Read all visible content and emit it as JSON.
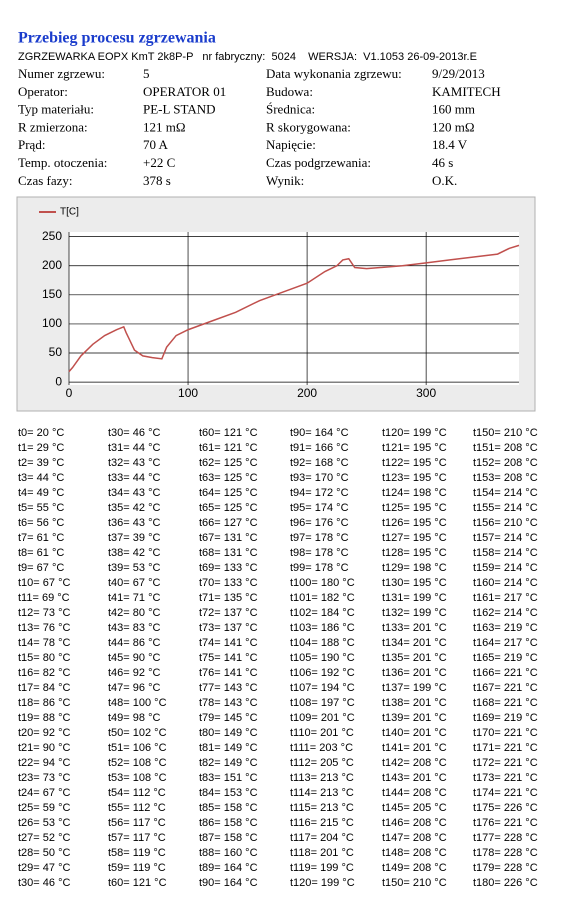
{
  "header": {
    "title": "Przebieg procesu zgrzewania",
    "subtitle": "ZGRZEWARKA EOPX KmT 2k8P-P   nr fabryczny:  5024    WERSJA:  V1.1053 26-09-2013r.E"
  },
  "info": {
    "left": [
      {
        "label": "Numer zgrzewu:",
        "value": "5"
      },
      {
        "label": "Operator:",
        "value": "OPERATOR 01"
      },
      {
        "label": "Typ materiału:",
        "value": "PE-L STAND"
      },
      {
        "label": "R zmierzona:",
        "value": "121 mΩ"
      },
      {
        "label": "Prąd:",
        "value": "70 A"
      },
      {
        "label": "Temp. otoczenia:",
        "value": "+22 C"
      },
      {
        "label": "Czas fazy:",
        "value": "378 s"
      }
    ],
    "right": [
      {
        "label": "Data wykonania zgrzewu:",
        "value": "9/29/2013"
      },
      {
        "label": "Budowa:",
        "value": "KAMITECH"
      },
      {
        "label": "Średnica:",
        "value": "160 mm"
      },
      {
        "label": "R skorygowana:",
        "value": "120 mΩ"
      },
      {
        "label": "Napięcie:",
        "value": "18.4 V"
      },
      {
        "label": "Czas podgrzewania:",
        "value": "46 s"
      },
      {
        "label": "Wynik:",
        "value": "O.K."
      }
    ]
  },
  "chart_data": {
    "type": "line",
    "x": [
      0,
      3,
      10,
      20,
      30,
      40,
      46,
      48,
      55,
      62,
      70,
      78,
      82,
      90,
      100,
      120,
      140,
      160,
      180,
      200,
      215,
      225,
      230,
      235,
      240,
      250,
      280,
      300,
      320,
      340,
      360,
      370,
      378
    ],
    "series": [
      {
        "name": "T[C]",
        "color": "#c0504d",
        "values": [
          18,
          25,
          45,
          65,
          80,
          90,
          95,
          85,
          55,
          45,
          42,
          40,
          60,
          80,
          90,
          105,
          120,
          140,
          155,
          170,
          190,
          200,
          210,
          212,
          197,
          195,
          200,
          205,
          210,
          215,
          220,
          230,
          235
        ]
      }
    ],
    "xlim": [
      0,
      378
    ],
    "ylim": [
      -5,
      258
    ],
    "xticks": [
      0,
      100,
      200,
      300
    ],
    "yticks": [
      0,
      50,
      100,
      150,
      200,
      250
    ],
    "grid": true
  },
  "table": {
    "columns": [
      [
        "t0= 20 °C",
        "t1= 29 °C",
        "t2= 39 °C",
        "t3= 44 °C",
        "t4= 49 °C",
        "t5= 55 °C",
        "t6= 56 °C",
        "t7= 61 °C",
        "t8= 61 °C",
        "t9= 67 °C",
        "t10= 67 °C",
        "t11= 69 °C",
        "t12= 73 °C",
        "t13= 76 °C",
        "t14= 78 °C",
        "t15= 80 °C",
        "t16= 82 °C",
        "t17= 84 °C",
        "t18= 86 °C",
        "t19= 88 °C",
        "t20= 92 °C",
        "t21= 90 °C",
        "t22= 94 °C",
        "t23= 73 °C",
        "t24= 67 °C",
        "t25= 59 °C",
        "t26= 53 °C",
        "t27= 52 °C",
        "t28= 50 °C",
        "t29= 47 °C",
        "t30= 46 °C"
      ],
      [
        "t30= 46 °C",
        "t31= 44 °C",
        "t32= 43 °C",
        "t33= 44 °C",
        "t34= 43 °C",
        "t35= 42 °C",
        "t36= 43 °C",
        "t37= 39 °C",
        "t38= 42 °C",
        "t39= 53 °C",
        "t40= 67 °C",
        "t41= 71 °C",
        "t42= 80 °C",
        "t43= 83 °C",
        "t44= 86 °C",
        "t45= 90 °C",
        "t46= 92 °C",
        "t47= 96 °C",
        "t48= 100 °C",
        "t49= 98 °C",
        "t50= 102 °C",
        "t51= 106 °C",
        "t52= 108 °C",
        "t53= 108 °C",
        "t54= 112 °C",
        "t55= 112 °C",
        "t56= 117 °C",
        "t57= 117 °C",
        "t58= 119 °C",
        "t59= 119 °C",
        "t60= 121 °C"
      ],
      [
        "t60= 121 °C",
        "t61= 121 °C",
        "t62= 125 °C",
        "t63= 125 °C",
        "t64= 125 °C",
        "t65= 125 °C",
        "t66= 127 °C",
        "t67= 131 °C",
        "t68= 131 °C",
        "t69= 133 °C",
        "t70= 133 °C",
        "t71= 135 °C",
        "t72= 137 °C",
        "t73= 137 °C",
        "t74= 141 °C",
        "t75= 141 °C",
        "t76= 141 °C",
        "t77= 143 °C",
        "t78= 143 °C",
        "t79= 145 °C",
        "t80= 149 °C",
        "t81= 149 °C",
        "t82= 149 °C",
        "t83= 151 °C",
        "t84= 153 °C",
        "t85= 158 °C",
        "t86= 158 °C",
        "t87= 158 °C",
        "t88= 160 °C",
        "t89= 164 °C",
        "t90= 164 °C"
      ],
      [
        "t90= 164 °C",
        "t91= 166 °C",
        "t92= 168 °C",
        "t93= 170 °C",
        "t94= 172 °C",
        "t95= 174 °C",
        "t96= 176 °C",
        "t97= 178 °C",
        "t98= 178 °C",
        "t99= 178 °C",
        "t100= 180 °C",
        "t101= 182 °C",
        "t102= 184 °C",
        "t103= 186 °C",
        "t104= 188 °C",
        "t105= 190 °C",
        "t106= 192 °C",
        "t107= 194 °C",
        "t108= 197 °C",
        "t109= 201 °C",
        "t110= 201 °C",
        "t111= 203 °C",
        "t112= 205 °C",
        "t113= 213 °C",
        "t114= 213 °C",
        "t115= 213 °C",
        "t116= 215 °C",
        "t117= 204 °C",
        "t118= 201 °C",
        "t119= 199 °C",
        "t120= 199 °C"
      ],
      [
        "t120= 199 °C",
        "t121= 195 °C",
        "t122= 195 °C",
        "t123= 195 °C",
        "t124= 198 °C",
        "t125= 195 °C",
        "t126= 195 °C",
        "t127= 195 °C",
        "t128= 195 °C",
        "t129= 198 °C",
        "t130= 195 °C",
        "t131= 199 °C",
        "t132= 199 °C",
        "t133= 201 °C",
        "t134= 201 °C",
        "t135= 201 °C",
        "t136= 201 °C",
        "t137= 199 °C",
        "t138= 201 °C",
        "t139= 201 °C",
        "t140= 201 °C",
        "t141= 201 °C",
        "t142= 208 °C",
        "t143= 201 °C",
        "t144= 208 °C",
        "t145= 205 °C",
        "t146= 208 °C",
        "t147= 208 °C",
        "t148= 208 °C",
        "t149= 208 °C",
        "t150= 210 °C"
      ],
      [
        "t150= 210 °C",
        "t151= 208 °C",
        "t152= 208 °C",
        "t153= 208 °C",
        "t154= 214 °C",
        "t155= 214 °C",
        "t156= 210 °C",
        "t157= 214 °C",
        "t158= 214 °C",
        "t159= 214 °C",
        "t160= 214 °C",
        "t161= 217 °C",
        "t162= 214 °C",
        "t163= 219 °C",
        "t164= 217 °C",
        "t165= 219 °C",
        "t166= 221 °C",
        "t167= 221 °C",
        "t168= 221 °C",
        "t169= 219 °C",
        "t170= 221 °C",
        "t171= 221 °C",
        "t172= 221 °C",
        "t173= 221 °C",
        "t174= 221 °C",
        "t175= 226 °C",
        "t176= 221 °C",
        "t177= 228 °C",
        "t178= 228 °C",
        "t179= 228 °C",
        "t180= 226 °C"
      ]
    ]
  }
}
